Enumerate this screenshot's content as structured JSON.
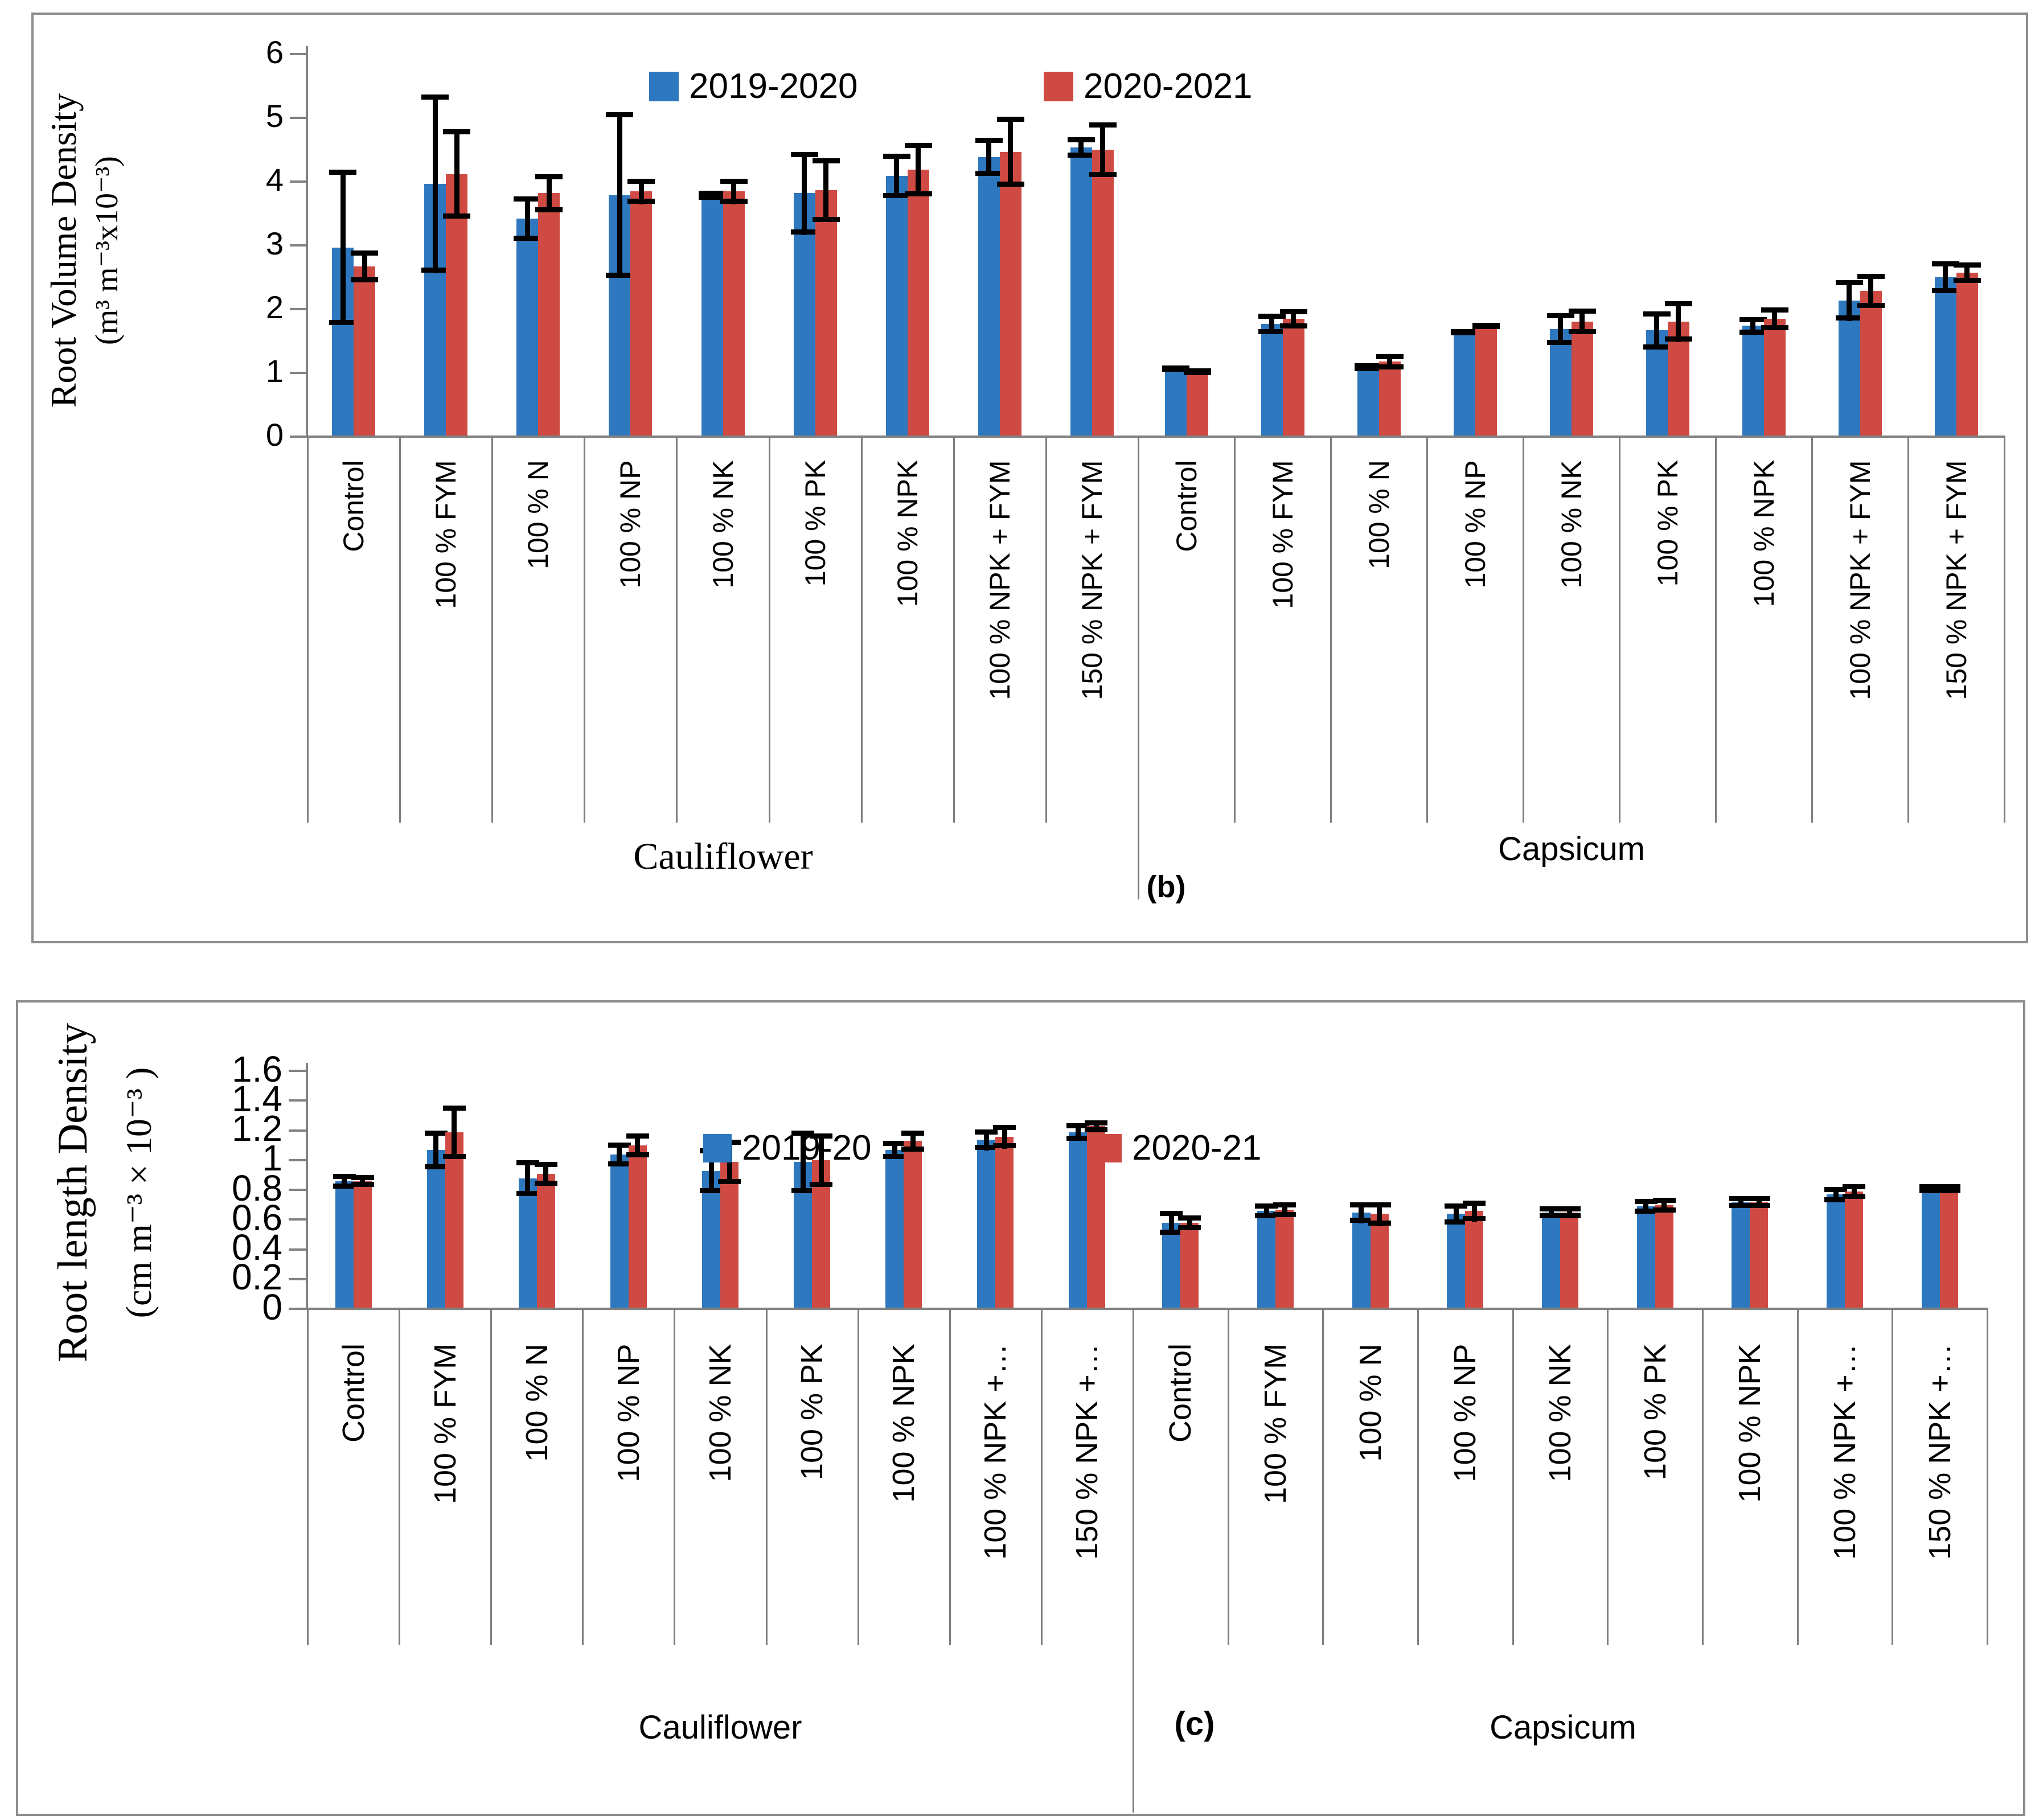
{
  "figure": {
    "background": "#ffffff",
    "series_colors": [
      "#2D78BE",
      "#D04A44"
    ],
    "error_color": "#000000",
    "axis_color": "#828282"
  },
  "chart_data": [
    {
      "id": "b",
      "type": "bar",
      "marker": "(b)",
      "ylabel_lines": [
        "Root Volume Density",
        "(m³ m⁻³x10⁻³)"
      ],
      "legend": [
        "2019-2020",
        "2020-2021"
      ],
      "ylim": [
        0,
        6
      ],
      "ytick_labels": [
        "0",
        "1",
        "2",
        "3",
        "4",
        "5",
        "6"
      ],
      "grid": false,
      "legend_position": "top-center",
      "groups": [
        {
          "label": "Cauliflower",
          "categories": [
            "Control",
            "100 % FYM",
            "100 % N",
            "100 % NP",
            "100 % NK",
            "100 % PK",
            "100 % NPK",
            "100 % NPK + FYM",
            "150 % NPK + FYM"
          ],
          "series": [
            {
              "name": "2019-2020",
              "values": [
                2.95,
                3.95,
                3.4,
                3.77,
                3.77,
                3.8,
                4.07,
                4.37,
                4.52
              ],
              "errors": [
                1.22,
                1.4,
                0.35,
                1.3,
                0.07,
                0.65,
                0.35,
                0.3,
                0.16
              ]
            },
            {
              "name": "2020-2021",
              "values": [
                2.65,
                4.1,
                3.8,
                3.83,
                3.83,
                3.85,
                4.17,
                4.45,
                4.48
              ],
              "errors": [
                0.25,
                0.7,
                0.3,
                0.2,
                0.2,
                0.5,
                0.42,
                0.55,
                0.43
              ]
            }
          ]
        },
        {
          "label": "Capsicum",
          "categories": [
            "Control",
            "100 % FYM",
            "100 % N",
            "100 % NP",
            "100 % NK",
            "100 % PK",
            "100 % NPK",
            "100 % NPK + FYM",
            "150 % NPK + FYM"
          ],
          "series": [
            {
              "name": "2019-2020",
              "values": [
                1.05,
                1.75,
                1.07,
                1.62,
                1.67,
                1.65,
                1.72,
                2.12,
                2.48
              ],
              "errors": [
                0.05,
                0.16,
                0.06,
                0.05,
                0.25,
                0.3,
                0.14,
                0.32,
                0.25
              ]
            },
            {
              "name": "2020-2021",
              "values": [
                1.0,
                1.83,
                1.16,
                1.72,
                1.79,
                1.79,
                1.83,
                2.27,
                2.55
              ],
              "errors": [
                0.05,
                0.15,
                0.12,
                0.05,
                0.2,
                0.32,
                0.18,
                0.27,
                0.16
              ]
            }
          ]
        }
      ]
    },
    {
      "id": "c",
      "type": "bar",
      "marker": "(c)",
      "ylabel_lines": [
        "Root length Density",
        "(cm m⁻³ × 10⁻³ )"
      ],
      "legend": [
        "2019-20",
        "2020-21"
      ],
      "ylim": [
        0,
        1.6
      ],
      "ytick_labels": [
        "0",
        "0.2",
        "0.4",
        "0.6",
        "0.8",
        "1",
        "1.2",
        "1.4",
        "1.6"
      ],
      "grid": false,
      "legend_position": "top-center",
      "groups": [
        {
          "label": "Cauliflower",
          "categories": [
            "Control",
            "100 % FYM",
            "100 % N",
            "100 % NP",
            "100 % NK",
            "100 % PK",
            "100 % NPK",
            "100 % NPK +…",
            "150 % NPK +…"
          ],
          "series": [
            {
              "name": "2019-20",
              "values": [
                0.85,
                1.06,
                0.87,
                1.03,
                0.92,
                0.98,
                1.06,
                1.13,
                1.18
              ],
              "errors": [
                0.05,
                0.13,
                0.12,
                0.08,
                0.15,
                0.21,
                0.06,
                0.07,
                0.06
              ]
            },
            {
              "name": "2020-21",
              "values": [
                0.85,
                1.18,
                0.9,
                1.09,
                0.98,
                0.99,
                1.12,
                1.15,
                1.22
              ],
              "errors": [
                0.04,
                0.18,
                0.08,
                0.08,
                0.15,
                0.18,
                0.07,
                0.08,
                0.04
              ]
            }
          ]
        },
        {
          "label": "Capsicum",
          "categories": [
            "Control",
            "100 % FYM",
            "100 % N",
            "100 % NP",
            "100 % NK",
            "100 % PK",
            "100 % NPK",
            "100 % NPK +…",
            "150 % NPK +…"
          ],
          "series": [
            {
              "name": "2019-20",
              "values": [
                0.57,
                0.65,
                0.64,
                0.63,
                0.64,
                0.68,
                0.71,
                0.76,
                0.8
              ],
              "errors": [
                0.08,
                0.05,
                0.07,
                0.07,
                0.04,
                0.05,
                0.04,
                0.05,
                0.03
              ]
            },
            {
              "name": "2020-21",
              "values": [
                0.57,
                0.66,
                0.63,
                0.65,
                0.64,
                0.69,
                0.71,
                0.78,
                0.8
              ],
              "errors": [
                0.05,
                0.05,
                0.08,
                0.07,
                0.04,
                0.05,
                0.04,
                0.05,
                0.03
              ]
            }
          ]
        }
      ]
    }
  ]
}
